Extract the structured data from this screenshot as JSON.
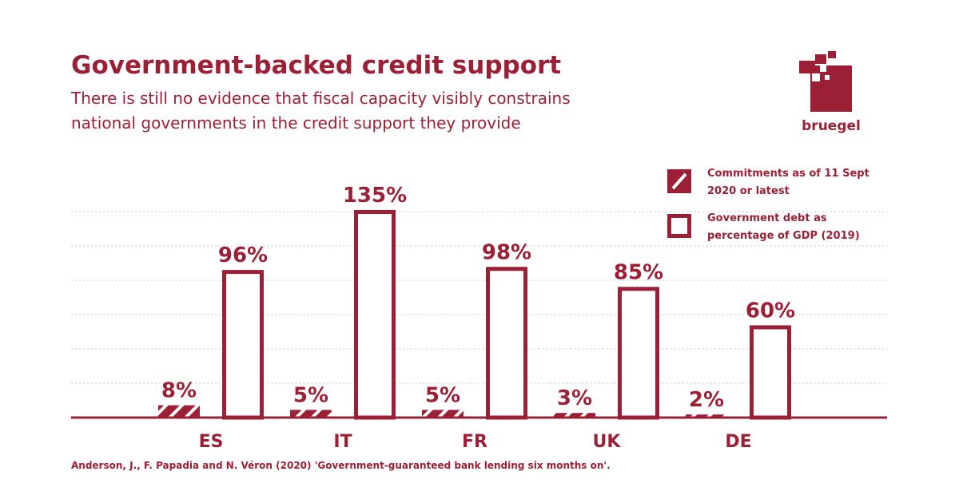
{
  "chart_data": {
    "type": "bar",
    "title": "Government-backed credit support",
    "subtitle": "There is still no evidence that fiscal capacity visibly constrains national governments in the credit support they provide",
    "categories": [
      "ES",
      "IT",
      "FR",
      "UK",
      "DE"
    ],
    "series": [
      {
        "name": "Commitments as of 11 Sept 2020 or latest",
        "style": "hatched",
        "values": [
          8,
          5,
          5,
          3,
          2
        ],
        "labels": [
          "8%",
          "5%",
          "5%",
          "3%",
          "2%"
        ]
      },
      {
        "name": "Government debt as percentage of GDP (2019)",
        "style": "outline",
        "values": [
          96,
          135,
          98,
          85,
          60
        ],
        "labels": [
          "96%",
          "135%",
          "98%",
          "85%",
          "60%"
        ]
      }
    ],
    "legend_lines": [
      [
        "Commitments as of 11 Sept",
        "2020 or latest"
      ],
      [
        "Government debt as",
        "percentage of GDP (2019)"
      ]
    ],
    "ylim": [
      0,
      135
    ],
    "grid": true,
    "legend_position": "top-right"
  },
  "logo": {
    "text": "bruegel"
  },
  "source": "Anderson, J., F. Papadia and N. Véron (2020) 'Government-guaranteed bank lending six months on'.",
  "colors": {
    "accent": "#9b1f35",
    "grid": "#c9c9c9",
    "background": "#ffffff"
  }
}
